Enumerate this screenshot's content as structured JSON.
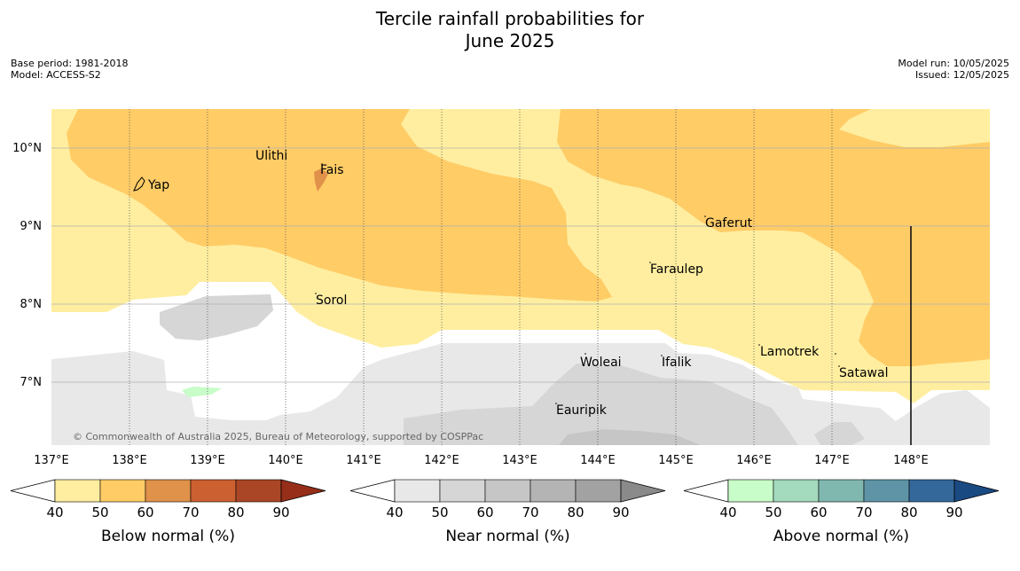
{
  "title_line1": "Tercile rainfall probabilities for",
  "title_line2": "June 2025",
  "meta_left": [
    "Base period: 1981-2018",
    "Model: ACCESS-S2"
  ],
  "meta_right": [
    "Model run: 10/05/2025",
    "Issued: 12/05/2025"
  ],
  "copyright": "© Commonwealth of Australia 2025, Bureau of Meteorology, supported by COSPPac",
  "lat_labels": [
    "10°N",
    "9°N",
    "8°N",
    "7°N"
  ],
  "lon_labels": [
    "137°E",
    "138°E",
    "139°E",
    "140°E",
    "141°E",
    "142°E",
    "143°E",
    "144°E",
    "145°E",
    "146°E",
    "147°E",
    "148°E"
  ],
  "places": [
    {
      "name": "Yap"
    },
    {
      "name": "Ulithi"
    },
    {
      "name": "Fais"
    },
    {
      "name": "Gaferut"
    },
    {
      "name": "Faraulep"
    },
    {
      "name": "Sorol"
    },
    {
      "name": "Lamotrek"
    },
    {
      "name": "Woleai"
    },
    {
      "name": "Ifalik"
    },
    {
      "name": "Satawal"
    },
    {
      "name": "Eauripik"
    }
  ],
  "legends": [
    {
      "label": "Below normal (%)",
      "ticks": [
        "40",
        "50",
        "60",
        "70",
        "80",
        "90"
      ],
      "colors": [
        "#ffffff",
        "#ffeea0",
        "#ffcc66",
        "#e0914a",
        "#cc6030",
        "#aa4626",
        "#962e1a"
      ]
    },
    {
      "label": "Near normal (%)",
      "ticks": [
        "40",
        "50",
        "60",
        "70",
        "80",
        "90"
      ],
      "colors": [
        "#ffffff",
        "#e8e8e8",
        "#d6d6d6",
        "#c6c6c6",
        "#b4b4b4",
        "#a2a2a2",
        "#8a8a8a"
      ]
    },
    {
      "label": "Above normal (%)",
      "ticks": [
        "40",
        "50",
        "60",
        "70",
        "80",
        "90"
      ],
      "colors": [
        "#ffffff",
        "#c8fcc8",
        "#a4dabe",
        "#80b8b0",
        "#5e94a6",
        "#34689a",
        "#1a4a82"
      ]
    }
  ]
}
